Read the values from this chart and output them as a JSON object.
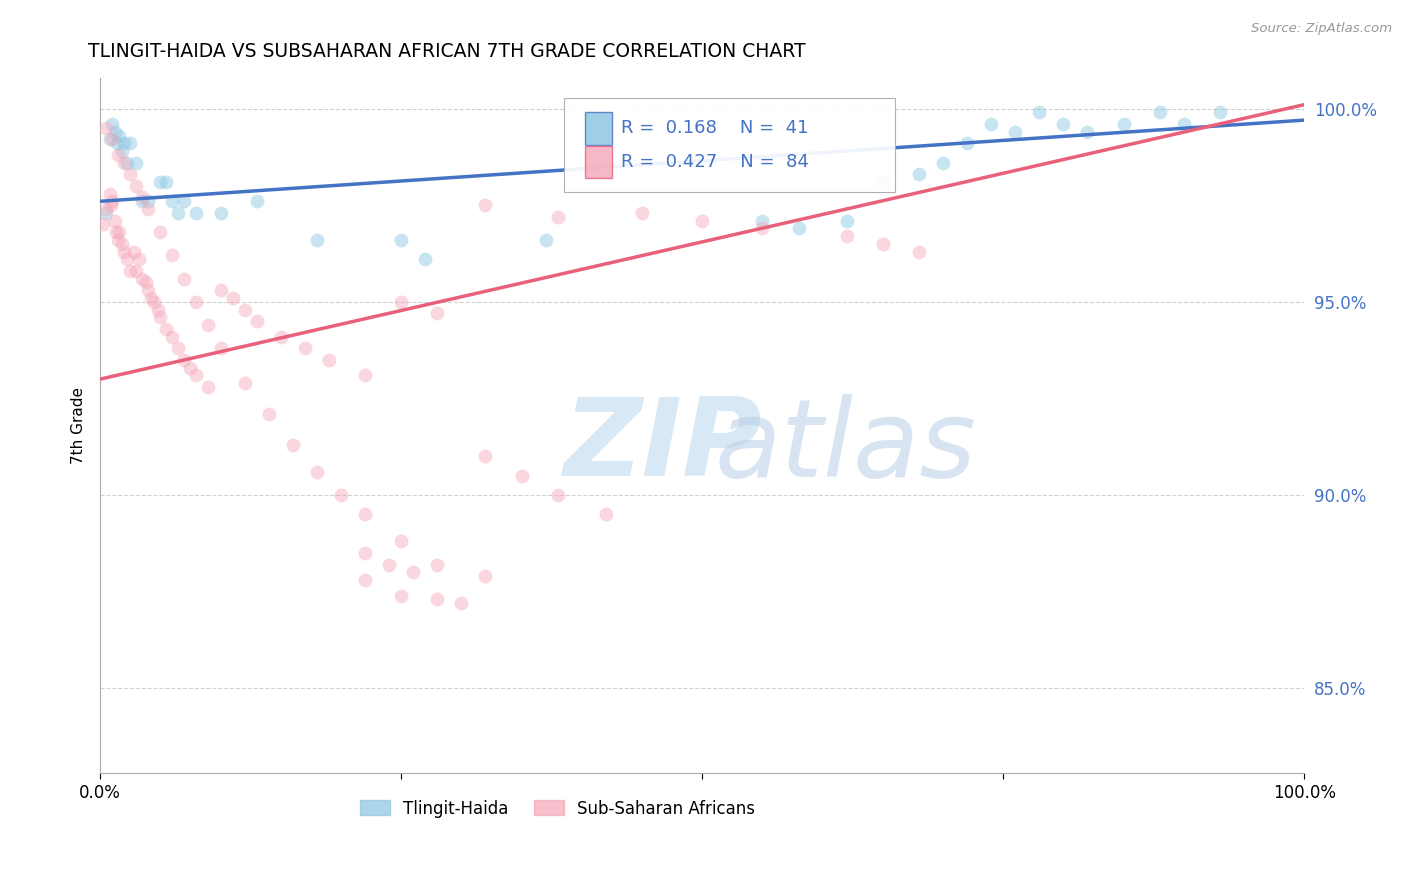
{
  "title": "TLINGIT-HAIDA VS SUBSAHARAN AFRICAN 7TH GRADE CORRELATION CHART",
  "source_text": "Source: ZipAtlas.com",
  "ylabel": "7th Grade",
  "xlim": [
    0.0,
    1.0
  ],
  "ylim": [
    0.828,
    1.008
  ],
  "yticks": [
    0.85,
    0.9,
    0.95,
    1.0
  ],
  "ytick_labels": [
    "85.0%",
    "90.0%",
    "95.0%",
    "100.0%"
  ],
  "blue_color": "#89c4e1",
  "pink_color": "#f4a6b8",
  "blue_line_color": "#4472c4",
  "pink_line_color": "#e8607a",
  "legend_color": "#4472c4",
  "watermark_zip": "ZIP",
  "watermark_atlas": "atlas",
  "blue_scatter_x": [
    0.005,
    0.008,
    0.01,
    0.012,
    0.014,
    0.016,
    0.018,
    0.02,
    0.022,
    0.025,
    0.03,
    0.035,
    0.04,
    0.05,
    0.055,
    0.06,
    0.065,
    0.07,
    0.08,
    0.1,
    0.13,
    0.18,
    0.25,
    0.27,
    0.37,
    0.55,
    0.58,
    0.62,
    0.65,
    0.68,
    0.7,
    0.72,
    0.74,
    0.76,
    0.78,
    0.8,
    0.82,
    0.85,
    0.88,
    0.9,
    0.93
  ],
  "blue_scatter_y": [
    0.973,
    0.992,
    0.996,
    0.994,
    0.991,
    0.993,
    0.989,
    0.991,
    0.986,
    0.991,
    0.986,
    0.976,
    0.976,
    0.981,
    0.981,
    0.976,
    0.973,
    0.976,
    0.973,
    0.973,
    0.976,
    0.966,
    0.966,
    0.961,
    0.966,
    0.971,
    0.969,
    0.971,
    0.981,
    0.983,
    0.986,
    0.991,
    0.996,
    0.994,
    0.999,
    0.996,
    0.994,
    0.996,
    0.999,
    0.996,
    0.999
  ],
  "pink_scatter_x": [
    0.002,
    0.005,
    0.008,
    0.009,
    0.01,
    0.012,
    0.013,
    0.015,
    0.016,
    0.018,
    0.02,
    0.022,
    0.025,
    0.028,
    0.03,
    0.032,
    0.035,
    0.038,
    0.04,
    0.042,
    0.045,
    0.048,
    0.05,
    0.055,
    0.06,
    0.065,
    0.07,
    0.075,
    0.08,
    0.09,
    0.1,
    0.11,
    0.12,
    0.13,
    0.15,
    0.17,
    0.19,
    0.22,
    0.25,
    0.28,
    0.32,
    0.38,
    0.45,
    0.5,
    0.55,
    0.62,
    0.65,
    0.68,
    0.005,
    0.01,
    0.015,
    0.02,
    0.025,
    0.03,
    0.035,
    0.04,
    0.05,
    0.06,
    0.07,
    0.08,
    0.09,
    0.1,
    0.12,
    0.14,
    0.16,
    0.18,
    0.2,
    0.22,
    0.25,
    0.28,
    0.32,
    0.35,
    0.38,
    0.42,
    0.22,
    0.25,
    0.28,
    0.3,
    0.32,
    0.22,
    0.24,
    0.26
  ],
  "pink_scatter_y": [
    0.97,
    0.974,
    0.978,
    0.975,
    0.976,
    0.971,
    0.968,
    0.966,
    0.968,
    0.965,
    0.963,
    0.961,
    0.958,
    0.963,
    0.958,
    0.961,
    0.956,
    0.955,
    0.953,
    0.951,
    0.95,
    0.948,
    0.946,
    0.943,
    0.941,
    0.938,
    0.935,
    0.933,
    0.931,
    0.928,
    0.953,
    0.951,
    0.948,
    0.945,
    0.941,
    0.938,
    0.935,
    0.931,
    0.95,
    0.947,
    0.975,
    0.972,
    0.973,
    0.971,
    0.969,
    0.967,
    0.965,
    0.963,
    0.995,
    0.992,
    0.988,
    0.986,
    0.983,
    0.98,
    0.977,
    0.974,
    0.968,
    0.962,
    0.956,
    0.95,
    0.944,
    0.938,
    0.929,
    0.921,
    0.913,
    0.906,
    0.9,
    0.895,
    0.888,
    0.882,
    0.91,
    0.905,
    0.9,
    0.895,
    0.878,
    0.874,
    0.873,
    0.872,
    0.879,
    0.885,
    0.882,
    0.88
  ],
  "blue_line_x": [
    0.0,
    1.0
  ],
  "blue_line_y": [
    0.976,
    0.997
  ],
  "pink_line_x": [
    0.0,
    1.0
  ],
  "pink_line_y": [
    0.93,
    1.001
  ],
  "grid_color": "#cccccc",
  "background_color": "#ffffff",
  "scatter_size": 100,
  "scatter_alpha": 0.45,
  "scatter_linewidth": 1.5
}
